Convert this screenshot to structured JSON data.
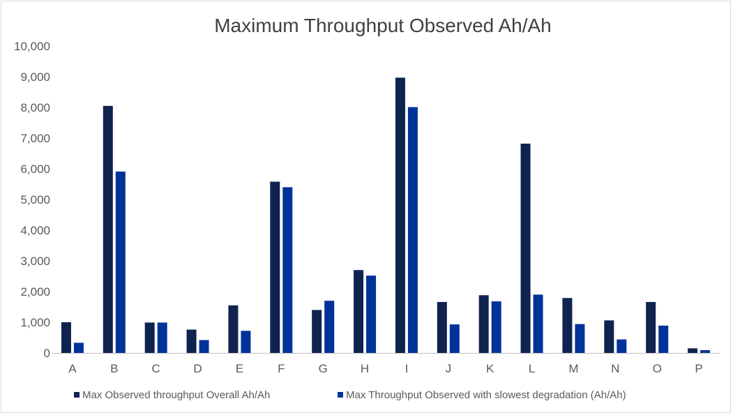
{
  "chart_data": {
    "type": "bar",
    "title": "Maximum Throughput Observed Ah/Ah",
    "xlabel": "",
    "ylabel": "",
    "ylim": [
      0,
      10000
    ],
    "yticks": [
      "0",
      "1,000",
      "2,000",
      "3,000",
      "4,000",
      "5,000",
      "6,000",
      "7,000",
      "8,000",
      "9,000",
      "10,000"
    ],
    "categories": [
      "A",
      "B",
      "C",
      "D",
      "E",
      "F",
      "G",
      "H",
      "I",
      "J",
      "K",
      "L",
      "M",
      "N",
      "O",
      "P"
    ],
    "series": [
      {
        "name": "Max Observed throughput Overall Ah/Ah",
        "color": "#0f2350",
        "values": [
          1000,
          8050,
          990,
          760,
          1550,
          5580,
          1400,
          2700,
          8970,
          1660,
          1880,
          6820,
          1790,
          1060,
          1660,
          150
        ]
      },
      {
        "name": "Max Throughput Observed with slowest degradation (Ah/Ah)",
        "color": "#003399",
        "values": [
          330,
          5910,
          990,
          420,
          720,
          5400,
          1700,
          2520,
          8010,
          930,
          1680,
          1900,
          940,
          440,
          890,
          90
        ]
      }
    ],
    "grid": false,
    "legend": "bottom"
  }
}
